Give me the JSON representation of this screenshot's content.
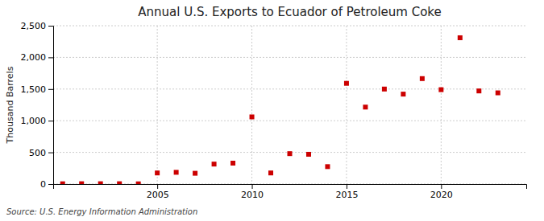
{
  "chart_data": {
    "type": "scatter",
    "title": "Annual U.S. Exports to Ecuador of Petroleum Coke",
    "ylabel": "Thousand Barrels",
    "source": "Source: U.S. Energy Information Administration",
    "x": [
      2000,
      2001,
      2002,
      2003,
      2004,
      2005,
      2006,
      2007,
      2008,
      2009,
      2010,
      2011,
      2012,
      2013,
      2014,
      2015,
      2016,
      2017,
      2018,
      2019,
      2020,
      2021,
      2022,
      2023
    ],
    "values": [
      4,
      5,
      5,
      5,
      3,
      175,
      185,
      170,
      315,
      330,
      1060,
      175,
      480,
      470,
      275,
      1590,
      1215,
      1500,
      1420,
      1665,
      1490,
      2310,
      1470,
      1440
    ],
    "color": "#cc0000",
    "marker": "square",
    "xlim": [
      1999.5,
      2024.5
    ],
    "xticks": [
      2005,
      2010,
      2015,
      2020
    ],
    "ylim": [
      0,
      2500
    ],
    "yticks": [
      0,
      500,
      {
        "value": 1000,
        "label": "1,000"
      },
      {
        "value": 1500,
        "label": "1,500"
      },
      {
        "value": 2000,
        "label": "2,000"
      },
      {
        "value": 2500,
        "label": "2,500"
      }
    ],
    "grid": true
  }
}
